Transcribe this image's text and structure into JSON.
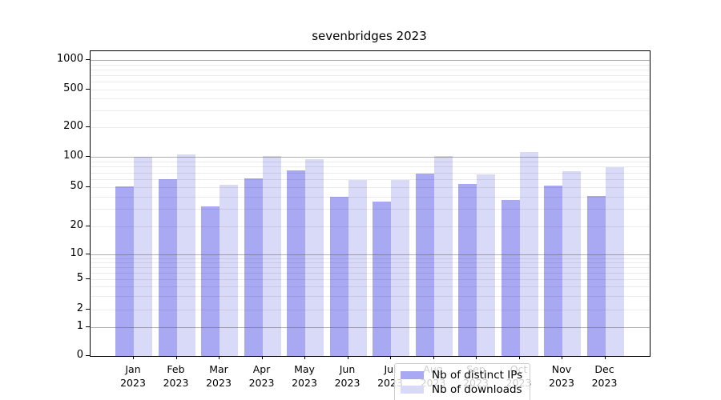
{
  "chart_data": {
    "type": "bar",
    "title": "sevenbridges 2023",
    "xlabel": "",
    "ylabel": "",
    "yscale": "symlog",
    "grid": true,
    "legend_position": "lower center inside plot",
    "year_label": "2023",
    "categories": [
      "Jan",
      "Feb",
      "Mar",
      "Apr",
      "May",
      "Jun",
      "Jul",
      "Aug",
      "Sep",
      "Oct",
      "Nov",
      "Dec"
    ],
    "y_ticks": [
      0,
      1,
      2,
      5,
      10,
      20,
      50,
      100,
      200,
      500,
      1000
    ],
    "y_major_gridlines": [
      1,
      10,
      100,
      1000
    ],
    "series": [
      {
        "name": "Nb of distinct IPs",
        "color": "#a9a9f3",
        "values": [
          51,
          60,
          32,
          61,
          73,
          40,
          36,
          68,
          54,
          37,
          52,
          41
        ]
      },
      {
        "name": "Nb of downloads",
        "color": "#d9d9f8",
        "values": [
          100,
          105,
          53,
          102,
          94,
          59,
          59,
          102,
          67,
          112,
          72,
          79
        ]
      }
    ]
  }
}
